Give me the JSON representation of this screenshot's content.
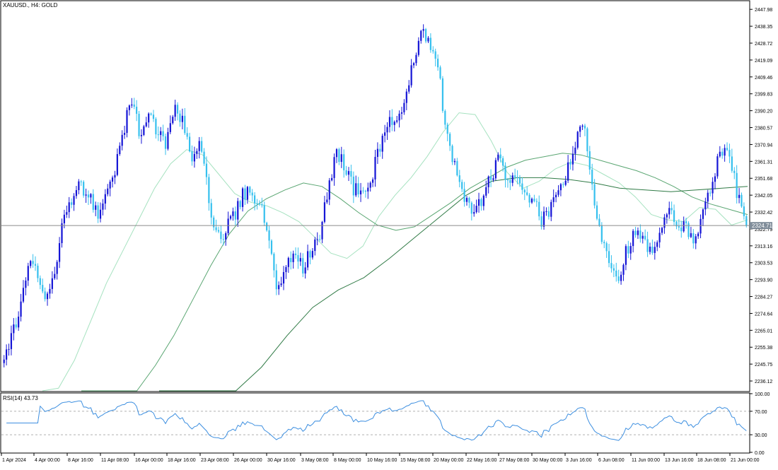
{
  "header": {
    "symbol": "XAUUSD.",
    "timeframe": "H4",
    "description": "GOLD",
    "title": "XAUUSD., H4:  GOLD"
  },
  "colors": {
    "bull_candle": "#1515d6",
    "bear_candle": "#36c0ee",
    "ma_fast": "#a6e2c0",
    "ma_mid": "#5aa672",
    "ma_slow": "#2f7a45",
    "rsi_line": "#3d8fe0",
    "price_line": "#8a8a8a",
    "axis": "#000000",
    "price_box": "#7f8c99"
  },
  "current_price": {
    "value": 2324.71,
    "label": "2324.71"
  },
  "rsi_panel": {
    "label": "RSI(14) 43.73",
    "value": 43.73
  },
  "chart_data": [
    {
      "type": "candlestick",
      "title": "XAUUSD., H4:  GOLD",
      "ylim": [
        2230.5,
        2452.5
      ],
      "y_ticks": [
        "2447.98",
        "2438.35",
        "2428.72",
        "2419.09",
        "2409.46",
        "2399.83",
        "2390.20",
        "2380.57",
        "2370.94",
        "2361.31",
        "2351.68",
        "2342.05",
        "2332.42",
        "2322.79",
        "2313.16",
        "2303.53",
        "2293.90",
        "2284.27",
        "2274.64",
        "2265.01",
        "2255.38",
        "2245.75",
        "2236.12"
      ],
      "x_ticks": [
        "1 Apr 2024",
        "4 Apr 00:00",
        "8 Apr 16:00",
        "11 Apr 08:00",
        "16 Apr 00:00",
        "18 Apr 16:00",
        "23 Apr 08:00",
        "26 Apr 00:00",
        "30 Apr 16:00",
        "3 May 08:00",
        "8 May 00:00",
        "10 May 16:00",
        "15 May 08:00",
        "20 May 00:00",
        "22 May 16:00",
        "27 May 08:00",
        "30 May 00:00",
        "3 Jun 16:00",
        "6 Jun 08:00",
        "11 Jun 00:00",
        "13 Jun 16:00",
        "18 Jun 08:00",
        "21 Jun 00:00"
      ],
      "close_anchors": [
        2252,
        2262,
        2280,
        2302,
        2298,
        2282,
        2300,
        2328,
        2342,
        2348,
        2340,
        2330,
        2342,
        2355,
        2380,
        2395,
        2375,
        2388,
        2378,
        2372,
        2390,
        2385,
        2365,
        2375,
        2338,
        2318,
        2322,
        2330,
        2342,
        2345,
        2336,
        2320,
        2290,
        2298,
        2312,
        2300,
        2310,
        2318,
        2346,
        2368,
        2358,
        2345,
        2343,
        2350,
        2370,
        2385,
        2382,
        2392,
        2420,
        2440,
        2425,
        2410,
        2372,
        2355,
        2342,
        2330,
        2340,
        2352,
        2362,
        2352,
        2348,
        2346,
        2338,
        2328,
        2332,
        2346,
        2355,
        2372,
        2382,
        2342,
        2320,
        2305,
        2295,
        2312,
        2320,
        2316,
        2306,
        2322,
        2332,
        2326,
        2322,
        2318,
        2332,
        2352,
        2366,
        2364,
        2342,
        2322
      ],
      "ma_series": [
        {
          "period": 20,
          "values": [
            2222,
            2232,
            2248,
            2270,
            2292,
            2310,
            2328,
            2346,
            2360,
            2368,
            2365,
            2354,
            2343,
            2338,
            2336,
            2332,
            2327,
            2318,
            2309,
            2306,
            2313,
            2330,
            2342,
            2352,
            2364,
            2378,
            2389,
            2388,
            2373,
            2355,
            2346,
            2350,
            2357,
            2361,
            2359,
            2354,
            2349,
            2341,
            2331,
            2328,
            2327,
            2335,
            2334,
            2325,
            2328
          ]
        },
        {
          "period": 50,
          "values": [
            2192,
            2202,
            2215,
            2228,
            2245,
            2262,
            2282,
            2302,
            2320,
            2333,
            2340,
            2345,
            2349,
            2347,
            2340,
            2332,
            2325,
            2322,
            2324,
            2331,
            2338,
            2346,
            2352,
            2358,
            2362,
            2364,
            2366,
            2365,
            2362,
            2359,
            2356,
            2352,
            2347,
            2341,
            2337,
            2334,
            2331
          ]
        },
        {
          "period": 100,
          "values": [
            2165,
            2180,
            2200,
            2222,
            2244,
            2262,
            2278,
            2288,
            2295,
            2306,
            2318,
            2330,
            2342,
            2350,
            2352,
            2352,
            2351,
            2349,
            2346,
            2345,
            2344,
            2345,
            2346,
            2347
          ]
        }
      ],
      "rsi": {
        "period": 14,
        "ylim": [
          0,
          100
        ],
        "levels": [
          30,
          70
        ],
        "y_ticks": [
          "100.00",
          "70.00",
          "30.00",
          "0.00"
        ],
        "current": 43.73
      }
    }
  ]
}
